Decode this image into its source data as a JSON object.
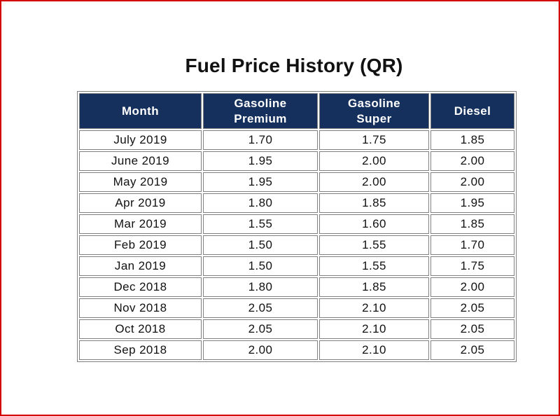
{
  "page": {
    "background": "#ffffff",
    "frame_border_color": "#d40000"
  },
  "title": "Fuel Price History (QR)",
  "table": {
    "header_bg": "#15305c",
    "header_text_color": "#ffffff",
    "cell_border_color": "#808080",
    "columns": [
      "Month",
      "Gasoline\nPremium",
      "Gasoline\nSuper",
      "Diesel"
    ],
    "rows": [
      [
        "July 2019",
        "1.70",
        "1.75",
        "1.85"
      ],
      [
        "June 2019",
        "1.95",
        "2.00",
        "2.00"
      ],
      [
        "May 2019",
        "1.95",
        "2.00",
        "2.00"
      ],
      [
        "Apr 2019",
        "1.80",
        "1.85",
        "1.95"
      ],
      [
        "Mar 2019",
        "1.55",
        "1.60",
        "1.85"
      ],
      [
        "Feb 2019",
        "1.50",
        "1.55",
        "1.70"
      ],
      [
        "Jan 2019",
        "1.50",
        "1.55",
        "1.75"
      ],
      [
        "Dec 2018",
        "1.80",
        "1.85",
        "2.00"
      ],
      [
        "Nov 2018",
        "2.05",
        "2.10",
        "2.05"
      ],
      [
        "Oct 2018",
        "2.05",
        "2.10",
        "2.05"
      ],
      [
        "Sep 2018",
        "2.00",
        "2.10",
        "2.05"
      ]
    ]
  },
  "chart_data": {
    "type": "table",
    "title": "Fuel Price History (QR)",
    "columns": [
      "Month",
      "Gasoline Premium",
      "Gasoline Super",
      "Diesel"
    ],
    "categories": [
      "July 2019",
      "June 2019",
      "May 2019",
      "Apr 2019",
      "Mar 2019",
      "Feb 2019",
      "Jan 2019",
      "Dec 2018",
      "Nov 2018",
      "Oct 2018",
      "Sep 2018"
    ],
    "series": [
      {
        "name": "Gasoline Premium",
        "values": [
          1.7,
          1.95,
          1.95,
          1.8,
          1.55,
          1.5,
          1.5,
          1.8,
          2.05,
          2.05,
          2.0
        ]
      },
      {
        "name": "Gasoline Super",
        "values": [
          1.75,
          2.0,
          2.0,
          1.85,
          1.6,
          1.55,
          1.55,
          1.85,
          2.1,
          2.1,
          2.1
        ]
      },
      {
        "name": "Diesel",
        "values": [
          1.85,
          2.0,
          2.0,
          1.95,
          1.85,
          1.7,
          1.75,
          2.0,
          2.05,
          2.05,
          2.05
        ]
      }
    ]
  }
}
